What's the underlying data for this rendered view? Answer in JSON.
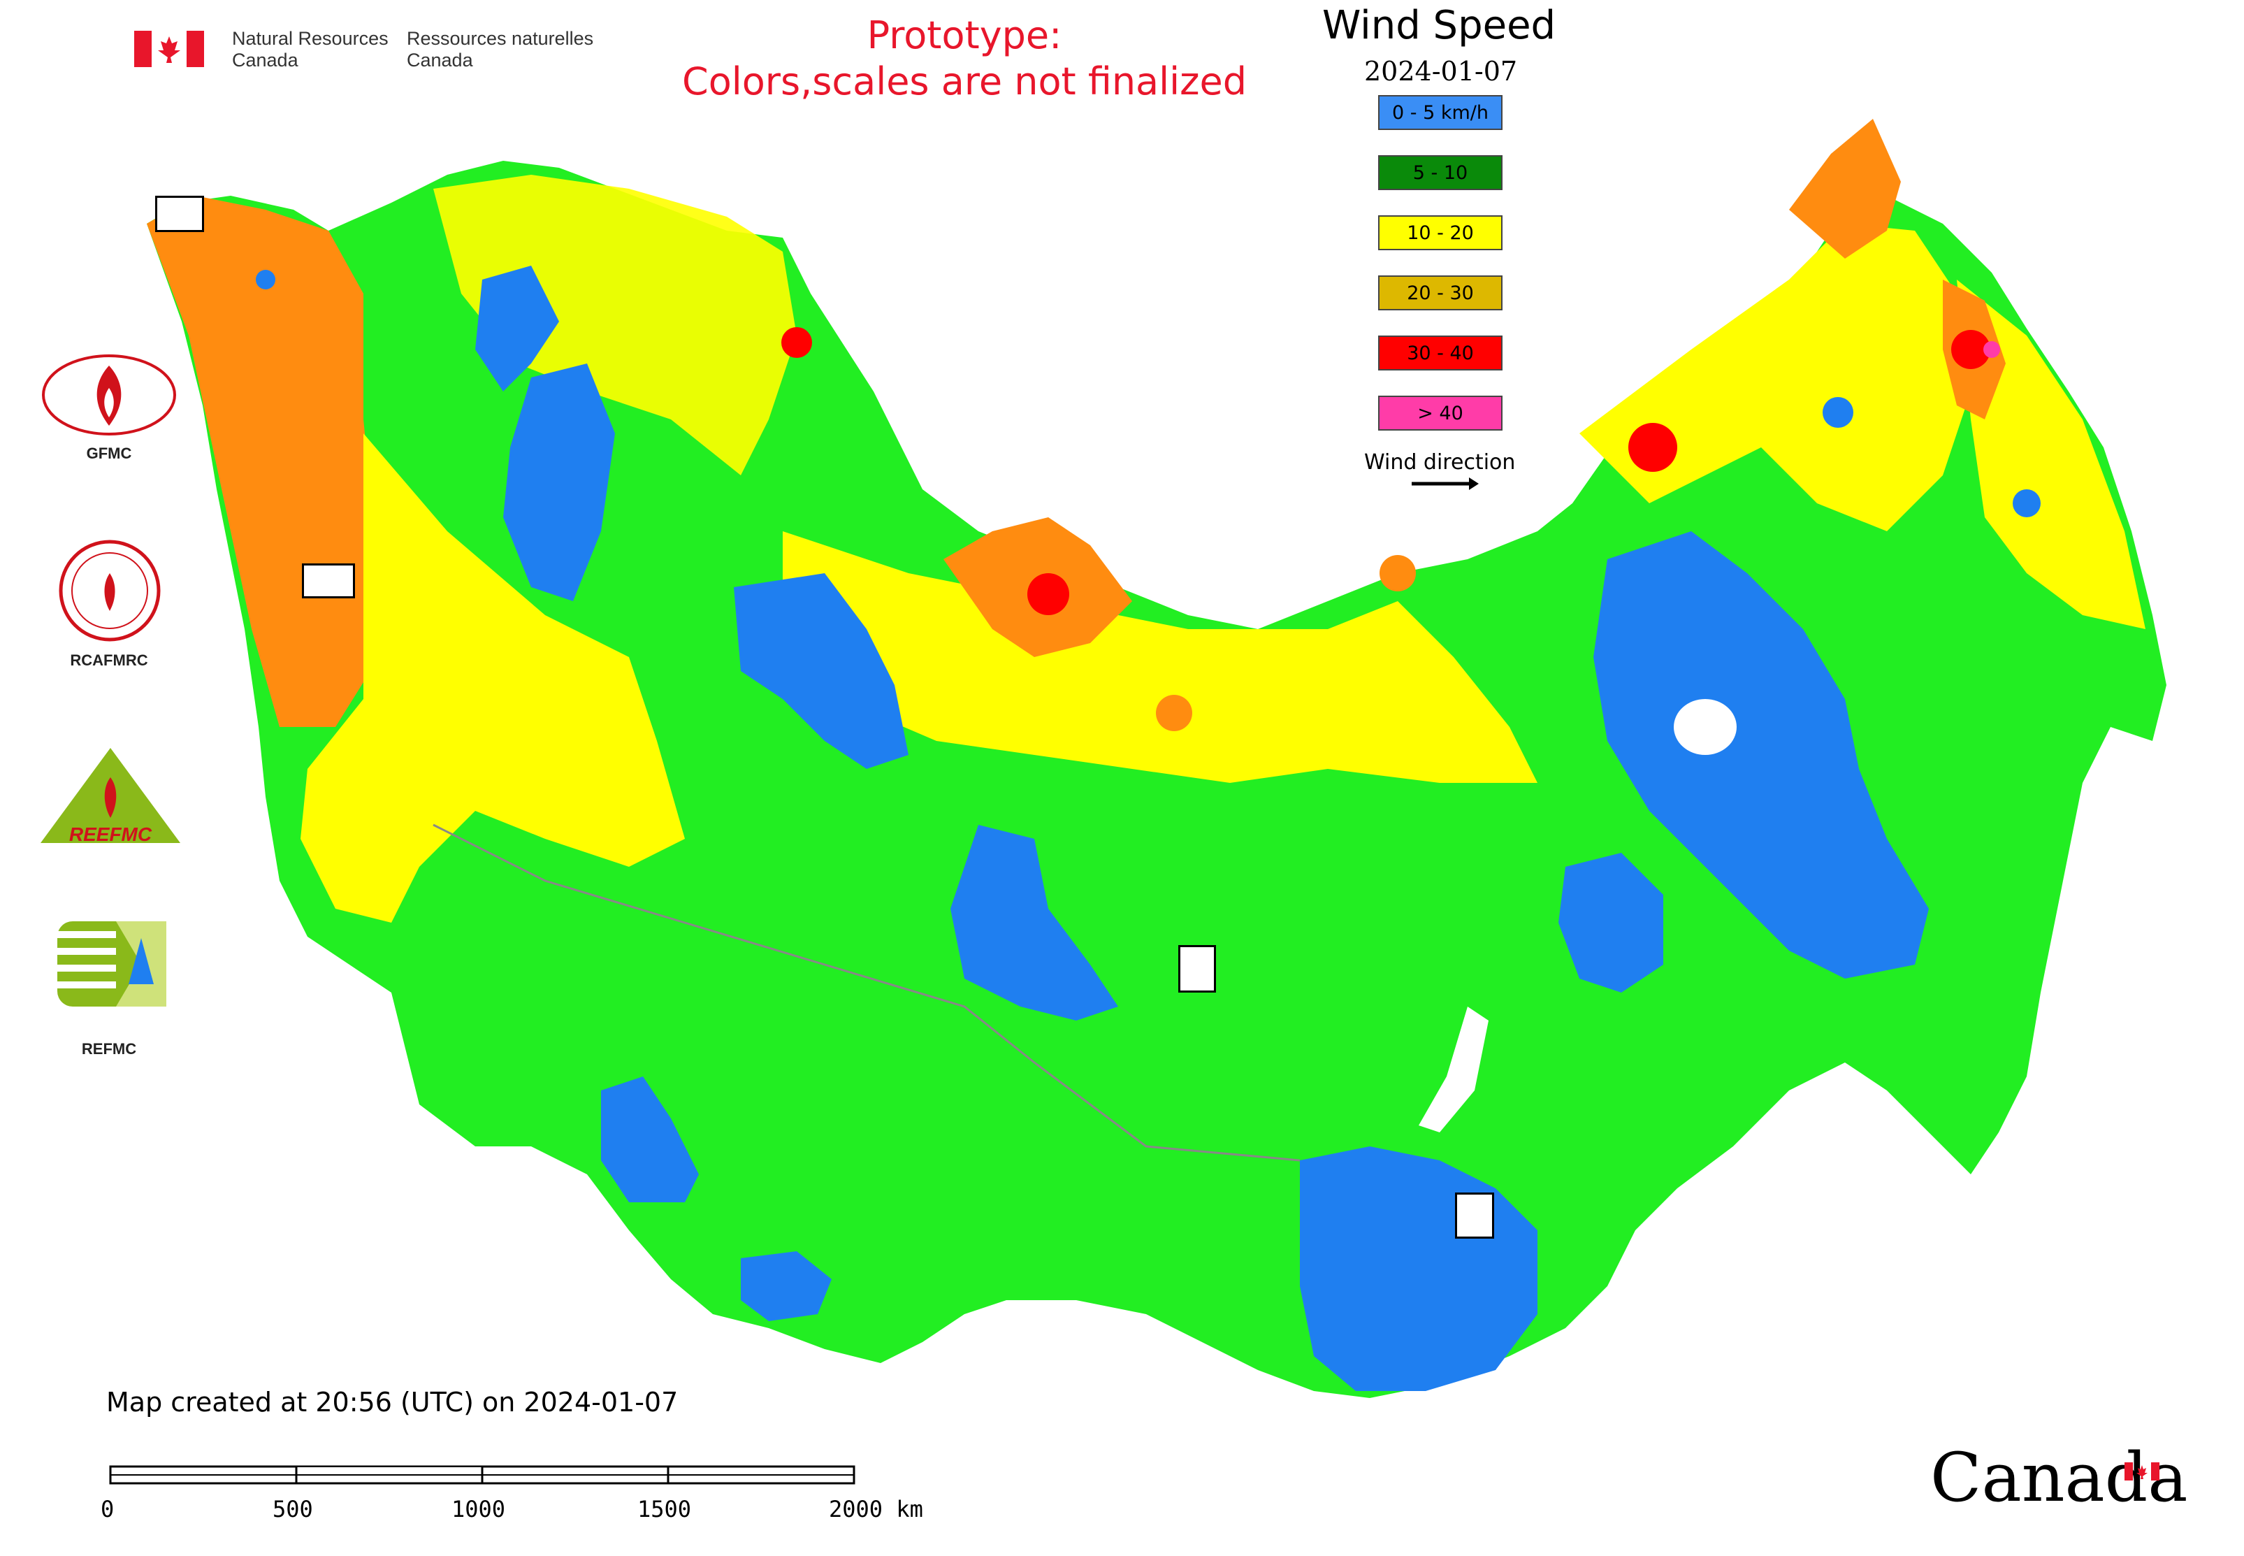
{
  "header": {
    "org_en_line1": "Natural Resources",
    "org_en_line2": "Canada",
    "org_fr_line1": "Ressources naturelles",
    "org_fr_line2": "Canada",
    "prototype_line1": "Prototype:",
    "prototype_line2": "Colors,scales are not finalized"
  },
  "title": "Wind Speed",
  "date": "2024-01-07",
  "legend": {
    "items": [
      {
        "label": "0 - 5 km/h",
        "color": "#3a8ef5"
      },
      {
        "label": "5 - 10",
        "color": "#0a8a0a"
      },
      {
        "label": "10 - 20",
        "color": "#ffff00"
      },
      {
        "label": "20 - 30",
        "color": "#ddb800"
      },
      {
        "label": "30 - 40",
        "color": "#ff0000"
      },
      {
        "label": "> 40",
        "color": "#ff3ca8"
      }
    ],
    "wind_direction_label": "Wind direction"
  },
  "map_colors": {
    "green": "#22ee22",
    "yellow": "#ffff00",
    "orange": "#ff8c10",
    "blue": "#1f7ff0",
    "red": "#ff0000",
    "magenta": "#ff3ca8"
  },
  "logos": [
    {
      "label": "GFMC"
    },
    {
      "label": "RCAFMRC"
    },
    {
      "label": "REEFMC"
    },
    {
      "label": "REFMC"
    }
  ],
  "footer": {
    "created": "Map created at 20:56 (UTC) on 2024-01-07",
    "scale_ticks": [
      "0",
      "500",
      "1000",
      "1500",
      "2000 km"
    ],
    "wordmark": "Canada"
  }
}
